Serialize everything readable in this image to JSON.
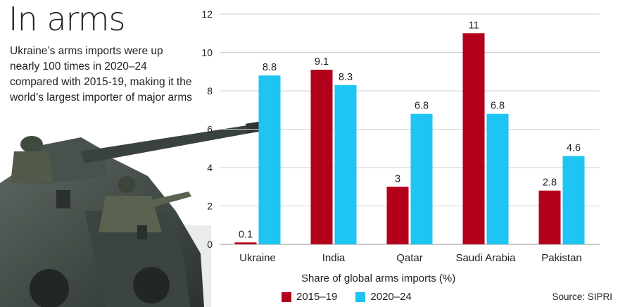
{
  "header": {
    "title": "In arms",
    "subtitle": "Ukraine’s arms imports were up nearly 100 times in 2020–24 compared with 2015-19, making it the world’s largest importer of major arms"
  },
  "source": "Source: SIPRI",
  "chart_data": {
    "type": "bar",
    "title": "In arms",
    "xlabel": "Share of global arms imports (%)",
    "ylabel": "",
    "categories": [
      "Ukraine",
      "India",
      "Qatar",
      "Saudi Arabia",
      "Pakistan"
    ],
    "series": [
      {
        "name": "2015–19",
        "values": [
          0.1,
          9.1,
          3,
          11,
          2.8
        ],
        "labels": [
          "0.1",
          "9.1",
          "3",
          "11",
          "2.8"
        ],
        "color": "#b3001b"
      },
      {
        "name": "2020–24",
        "values": [
          8.8,
          8.3,
          6.8,
          6.8,
          4.6
        ],
        "labels": [
          "8.8",
          "8.3",
          "6.8",
          "6.8",
          "4.6"
        ],
        "color": "#1ec4f2"
      }
    ],
    "ylim": [
      0,
      12
    ],
    "yticks": [
      0,
      2,
      4,
      6,
      8,
      10,
      12
    ],
    "grid": true,
    "legend_position": "bottom-left"
  }
}
